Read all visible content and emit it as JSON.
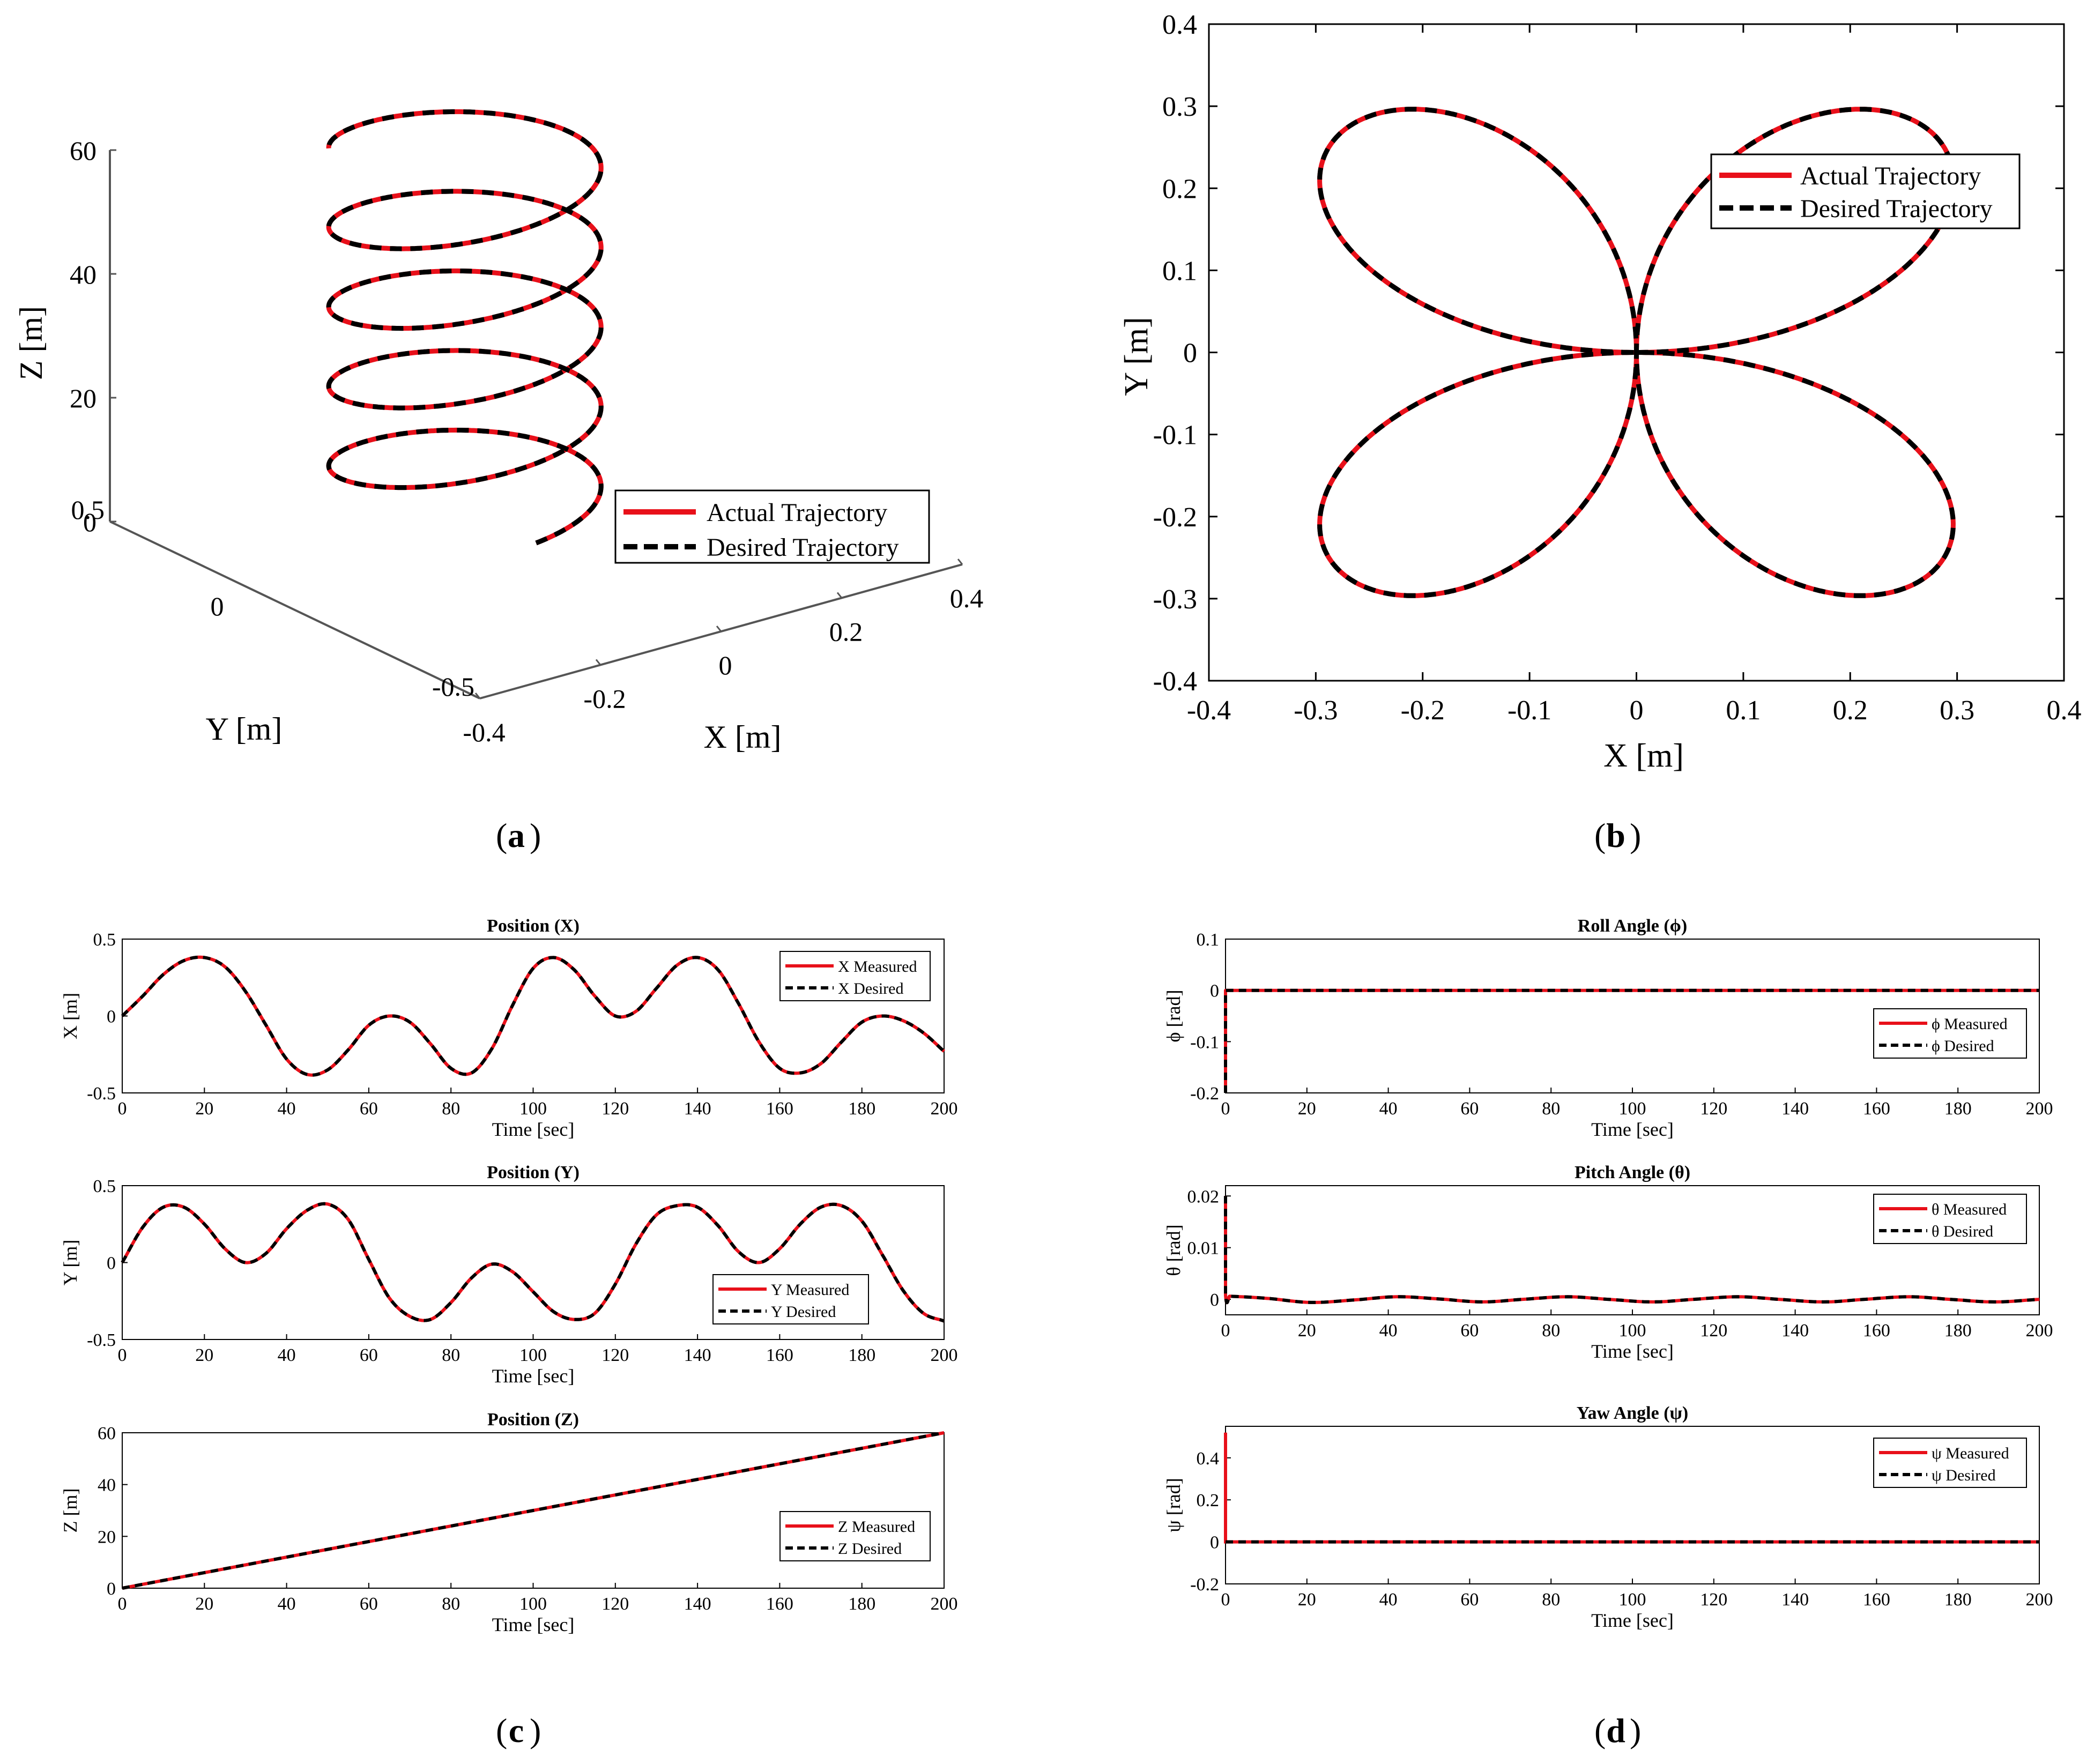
{
  "chart_data": [
    {
      "id": "a",
      "type": "line",
      "projection": "3d",
      "panel_label": "a",
      "xlabel": "X [m]",
      "ylabel": "Y [m]",
      "zlabel": "Z [m]",
      "xlim": [
        -0.4,
        0.4
      ],
      "ylim": [
        -0.5,
        0.5
      ],
      "zlim": [
        0,
        60
      ],
      "xticks": [
        "-0.4",
        "-0.2",
        "0",
        "0.2",
        "0.4"
      ],
      "yticks": [
        "0.5",
        "0",
        "-0.5"
      ],
      "zticks": [
        "60",
        "40",
        "20",
        "0"
      ],
      "legend_position": "bottom-right",
      "series": [
        {
          "name": "Actual Trajectory",
          "color": "#e8101a",
          "style": "solid"
        },
        {
          "name": "Desired Trajectory",
          "color": "#000000",
          "style": "dashed"
        }
      ],
      "curve": {
        "x": "0.385*sin(0.0733*t)*cos(0.0733*t)",
        "y": "0.385*sin(0.0733*t)*sin(0.0733*t)",
        "z": "0.3*t",
        "t_range": [
          0,
          200
        ]
      }
    },
    {
      "id": "b",
      "type": "line",
      "panel_label": "b",
      "xlabel": "X [m]",
      "ylabel": "Y [m]",
      "xlim": [
        -0.4,
        0.4
      ],
      "ylim": [
        -0.4,
        0.4
      ],
      "xticks": [
        "-0.4",
        "-0.3",
        "-0.2",
        "-0.1",
        "0",
        "0.1",
        "0.2",
        "0.3",
        "0.4"
      ],
      "yticks": [
        "0.4",
        "0.3",
        "0.2",
        "0.1",
        "0",
        "-0.1",
        "-0.2",
        "-0.3",
        "-0.4"
      ],
      "legend_position": "top-right",
      "series": [
        {
          "name": "Actual Trajectory",
          "color": "#e8101a",
          "style": "solid"
        },
        {
          "name": "Desired Trajectory",
          "color": "#000000",
          "style": "dashed"
        }
      ],
      "curve": {
        "type": "four-petal rose",
        "r_max": 0.385,
        "x": "r*cos(th)",
        "y": "r*sin(th)",
        "r": "0.385*sin(2*th)"
      }
    },
    {
      "id": "c1",
      "type": "line",
      "title": "Position (X)",
      "xlabel": "Time [sec]",
      "ylabel": "X [m]",
      "xlim": [
        0,
        200
      ],
      "ylim": [
        -0.5,
        0.5
      ],
      "xticks": [
        "0",
        "20",
        "40",
        "60",
        "80",
        "100",
        "120",
        "140",
        "160",
        "180",
        "200"
      ],
      "yticks": [
        "0.5",
        "0",
        "-0.5"
      ],
      "legend_position": "top-right",
      "series": [
        {
          "name": "X Measured",
          "color": "#e8101a",
          "style": "solid"
        },
        {
          "name": "X Desired",
          "color": "#000000",
          "style": "dashed"
        }
      ],
      "x": [
        0,
        5,
        10,
        15,
        20,
        25,
        30,
        35,
        40,
        45,
        50,
        55,
        60,
        65,
        70,
        75,
        80,
        85,
        90,
        95,
        100,
        105,
        110,
        115,
        120,
        125,
        130,
        135,
        140,
        145,
        150,
        155,
        160,
        165,
        170,
        175,
        180,
        185,
        190,
        195,
        200
      ],
      "y": [
        0.0,
        0.13,
        0.27,
        0.36,
        0.38,
        0.32,
        0.16,
        -0.06,
        -0.28,
        -0.38,
        -0.35,
        -0.22,
        -0.06,
        0.0,
        -0.04,
        -0.18,
        -0.34,
        -0.37,
        -0.21,
        0.07,
        0.31,
        0.38,
        0.3,
        0.13,
        0.0,
        0.03,
        0.18,
        0.33,
        0.38,
        0.3,
        0.08,
        -0.17,
        -0.34,
        -0.37,
        -0.31,
        -0.17,
        -0.04,
        0.0,
        -0.03,
        -0.11,
        -0.23
      ]
    },
    {
      "id": "c2",
      "type": "line",
      "title": "Position (Y)",
      "xlabel": "Time [sec]",
      "ylabel": "Y [m]",
      "xlim": [
        0,
        200
      ],
      "ylim": [
        -0.5,
        0.5
      ],
      "xticks": [
        "0",
        "20",
        "40",
        "60",
        "80",
        "100",
        "120",
        "140",
        "160",
        "180",
        "200"
      ],
      "yticks": [
        "0.5",
        "0",
        "-0.5"
      ],
      "legend_position": "center-right",
      "series": [
        {
          "name": "Y Measured",
          "color": "#e8101a",
          "style": "solid"
        },
        {
          "name": "Y Desired",
          "color": "#000000",
          "style": "dashed"
        }
      ],
      "x": [
        0,
        5,
        10,
        15,
        20,
        25,
        30,
        35,
        40,
        45,
        50,
        55,
        60,
        65,
        70,
        75,
        80,
        85,
        90,
        95,
        100,
        105,
        110,
        115,
        120,
        125,
        130,
        135,
        140,
        145,
        150,
        155,
        160,
        165,
        170,
        175,
        180,
        185,
        190,
        195,
        200
      ],
      "y": [
        0.0,
        0.23,
        0.36,
        0.36,
        0.25,
        0.09,
        0.0,
        0.06,
        0.22,
        0.34,
        0.38,
        0.28,
        0.02,
        -0.23,
        -0.35,
        -0.37,
        -0.26,
        -0.1,
        -0.01,
        -0.06,
        -0.19,
        -0.32,
        -0.37,
        -0.33,
        -0.14,
        0.12,
        0.31,
        0.37,
        0.36,
        0.24,
        0.07,
        0.0,
        0.09,
        0.25,
        0.36,
        0.37,
        0.27,
        0.05,
        -0.18,
        -0.33,
        -0.38
      ]
    },
    {
      "id": "c3",
      "type": "line",
      "title": "Position (Z)",
      "xlabel": "Time [sec]",
      "ylabel": "Z [m]",
      "xlim": [
        0,
        200
      ],
      "ylim": [
        0,
        60
      ],
      "xticks": [
        "0",
        "20",
        "40",
        "60",
        "80",
        "100",
        "120",
        "140",
        "160",
        "180",
        "200"
      ],
      "yticks": [
        "60",
        "40",
        "20",
        "0"
      ],
      "legend_position": "center-right",
      "series": [
        {
          "name": "Z Measured",
          "color": "#e8101a",
          "style": "solid"
        },
        {
          "name": "Z Desired",
          "color": "#000000",
          "style": "dashed"
        }
      ],
      "x": [
        0,
        200
      ],
      "y": [
        0,
        60
      ]
    },
    {
      "id": "d1",
      "type": "line",
      "title": "Roll Angle (ϕ)",
      "xlabel": "Time [sec]",
      "ylabel": "ϕ [rad]",
      "xlim": [
        0,
        200
      ],
      "ylim": [
        -0.2,
        0.1
      ],
      "xticks": [
        "0",
        "20",
        "40",
        "60",
        "80",
        "100",
        "120",
        "140",
        "160",
        "180",
        "200"
      ],
      "yticks": [
        "0.1",
        "0",
        "-0.1",
        "-0.2"
      ],
      "legend_position": "center-right",
      "series": [
        {
          "name": "ϕ Measured",
          "color": "#e8101a",
          "style": "solid"
        },
        {
          "name": "ϕ Desired",
          "color": "#000000",
          "style": "dashed"
        }
      ],
      "x": [
        0,
        0,
        0.5,
        200
      ],
      "y": [
        -0.2,
        0,
        0,
        0
      ]
    },
    {
      "id": "d2",
      "type": "line",
      "title": "Pitch Angle (θ)",
      "xlabel": "Time [sec]",
      "ylabel": "θ [rad]",
      "xlim": [
        0,
        200
      ],
      "ylim": [
        -0.003,
        0.022
      ],
      "xticks": [
        "0",
        "20",
        "40",
        "60",
        "80",
        "100",
        "120",
        "140",
        "160",
        "180",
        "200"
      ],
      "yticks": [
        "0.02",
        "0.01",
        "0"
      ],
      "legend_position": "top-right",
      "series": [
        {
          "name": "θ Measured",
          "color": "#e8101a",
          "style": "solid"
        },
        {
          "name": "θ Desired",
          "color": "#000000",
          "style": "dashed"
        }
      ],
      "x": [
        0,
        0,
        1,
        10,
        21,
        32,
        42,
        52,
        63,
        73,
        84,
        94,
        105,
        115,
        126,
        136,
        147,
        157,
        168,
        178,
        189,
        200
      ],
      "y": [
        0.02,
        0.0008,
        0.0006,
        0.0002,
        -0.0006,
        -0.0001,
        0.0005,
        0.0001,
        -0.0005,
        0.0,
        0.0005,
        0.0,
        -0.0005,
        0.0,
        0.0005,
        0.0,
        -0.0005,
        0.0,
        0.0005,
        0.0,
        -0.0005,
        0.0
      ]
    },
    {
      "id": "d3",
      "type": "line",
      "title": "Yaw Angle (ψ)",
      "xlabel": "Time [sec]",
      "ylabel": "ψ [rad]",
      "xlim": [
        0,
        200
      ],
      "ylim": [
        -0.2,
        0.55
      ],
      "xticks": [
        "0",
        "20",
        "40",
        "60",
        "80",
        "100",
        "120",
        "140",
        "160",
        "180",
        "200"
      ],
      "yticks": [
        "0.4",
        "0.2",
        "0",
        "-0.2"
      ],
      "legend_position": "top-right",
      "series": [
        {
          "name": "ψ Measured",
          "color": "#e8101a",
          "style": "solid"
        },
        {
          "name": "ψ Desired",
          "color": "#000000",
          "style": "dashed"
        }
      ],
      "x": [
        0,
        0,
        0.5,
        200
      ],
      "y": [
        0.52,
        0,
        0,
        0
      ]
    }
  ],
  "panel_labels": {
    "a": "a",
    "b": "b",
    "c": "c",
    "d": "d"
  }
}
